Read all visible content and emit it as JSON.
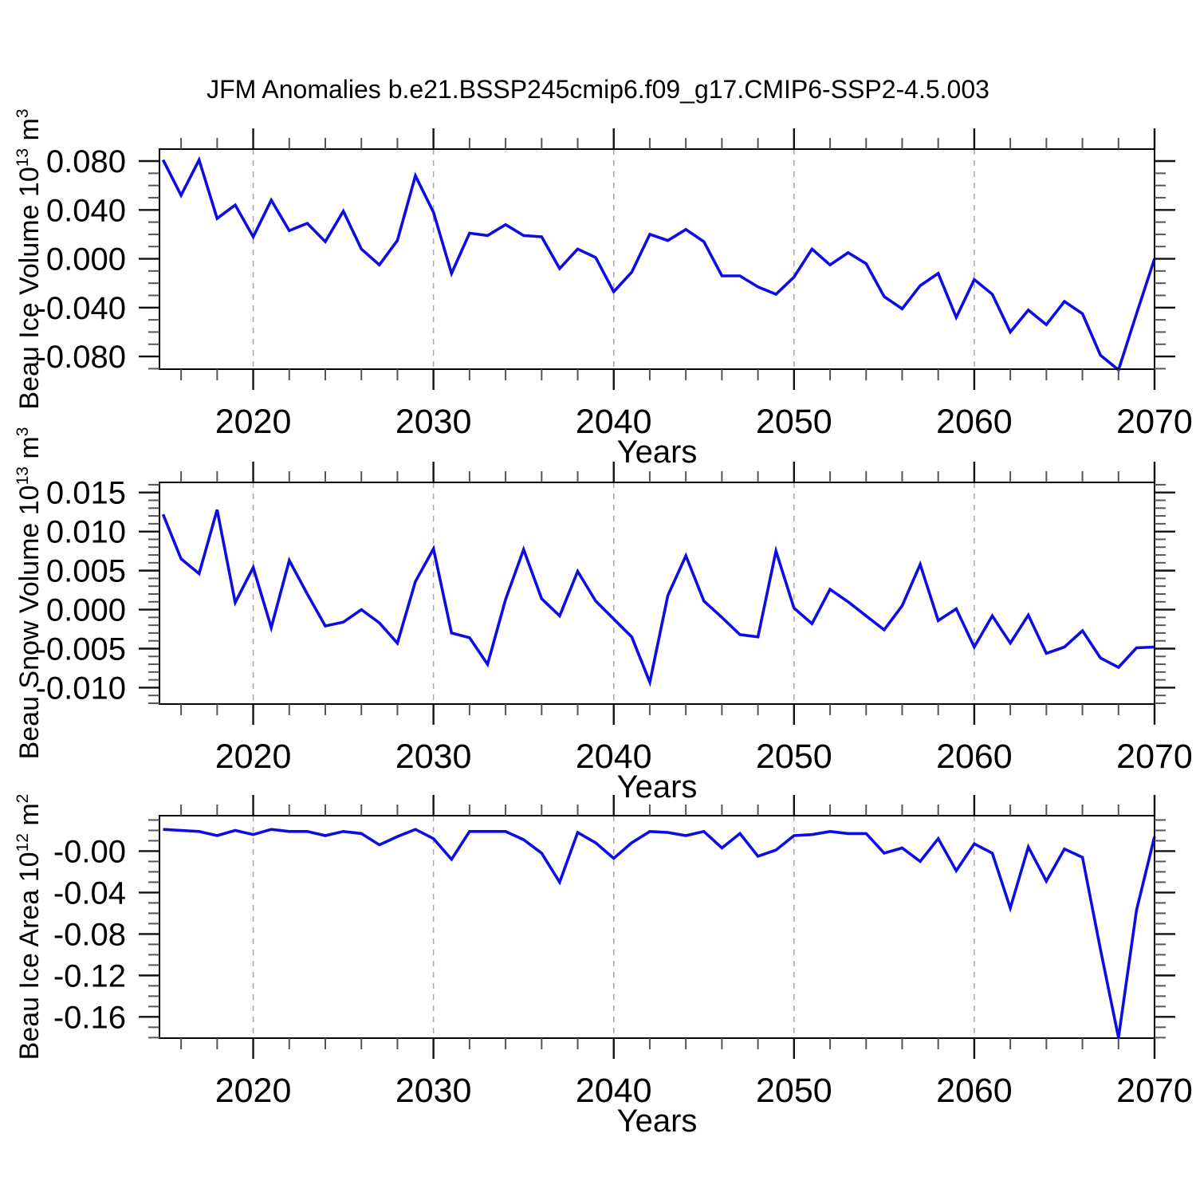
{
  "title": "JFM Anomalies b.e21.BSSP245cmip6.f09_g17.CMIP6-SSP2-4.5.003",
  "colors": {
    "line": "#0D0DE3",
    "grid": "#A9A9A9",
    "axis": "#000000",
    "tick_major": "#111111",
    "tick_minor": "#555555"
  },
  "chart_data": {
    "type": "line",
    "title": "JFM Anomalies b.e21.BSSP245cmip6.f09_g17.CMIP6-SSP2-4.5.003",
    "x": {
      "label": "Years",
      "domain": [
        2014.8,
        2070
      ],
      "major_ticks": [
        2020,
        2030,
        2040,
        2050,
        2060,
        2070
      ],
      "major_tick_labels": [
        "2020",
        "2030",
        "2040",
        "2050",
        "2060",
        "2070"
      ],
      "minor_step": 2,
      "grid_decades": [
        2020,
        2030,
        2040,
        2050,
        2060
      ],
      "years": [
        2015,
        2016,
        2017,
        2018,
        2019,
        2020,
        2021,
        2022,
        2023,
        2024,
        2025,
        2026,
        2027,
        2028,
        2029,
        2030,
        2031,
        2032,
        2033,
        2034,
        2035,
        2036,
        2037,
        2038,
        2039,
        2040,
        2041,
        2042,
        2043,
        2044,
        2045,
        2046,
        2047,
        2048,
        2049,
        2050,
        2051,
        2052,
        2053,
        2054,
        2055,
        2056,
        2057,
        2058,
        2059,
        2060,
        2061,
        2062,
        2063,
        2064,
        2065,
        2066,
        2067,
        2068,
        2069,
        2070
      ]
    },
    "panels": [
      {
        "name": "beau-ice-volume",
        "ylabel": "Beau Ice Volume 10^13 m^3",
        "ylabel_parts": {
          "base": "Beau Ice Volume 10",
          "exp": "13",
          "unit": " m",
          "unit_exp": "3"
        },
        "ylim": [
          -0.0904,
          0.0898
        ],
        "ytick_values": [
          0.08,
          0.04,
          0.0,
          -0.04,
          -0.08
        ],
        "ytick_labels": [
          "0.080",
          "0.040",
          "0.000",
          "-0.040",
          "-0.080"
        ],
        "yminor_step": 0.01,
        "values": [
          0.081,
          0.052,
          0.081,
          0.033,
          0.044,
          0.018,
          0.048,
          0.023,
          0.029,
          0.014,
          0.039,
          0.008,
          -0.005,
          0.015,
          0.068,
          0.038,
          -0.012,
          0.021,
          0.019,
          0.028,
          0.019,
          0.018,
          -0.008,
          0.008,
          0.001,
          -0.027,
          -0.011,
          0.02,
          0.015,
          0.024,
          0.014,
          -0.014,
          -0.014,
          -0.023,
          -0.029,
          -0.015,
          0.008,
          -0.005,
          0.005,
          -0.004,
          -0.031,
          -0.041,
          -0.022,
          -0.012,
          -0.048,
          -0.017,
          -0.029,
          -0.06,
          -0.042,
          -0.054,
          -0.035,
          -0.045,
          -0.079,
          -0.091,
          -0.045,
          0.0
        ]
      },
      {
        "name": "beau-snow-volume",
        "ylabel": "Beau Snow Volume 10^13 m^3",
        "ylabel_parts": {
          "base": "Beau Snow Volume 10",
          "exp": "13",
          "unit": " m",
          "unit_exp": "3"
        },
        "ylim": [
          -0.0121,
          0.0163
        ],
        "ytick_values": [
          0.015,
          0.01,
          0.005,
          0.0,
          -0.005,
          -0.01
        ],
        "ytick_labels": [
          "0.015",
          "0.010",
          "0.005",
          "0.000",
          "-0.005",
          "-0.010"
        ],
        "yminor_step": 0.001,
        "values": [
          0.0122,
          0.0065,
          0.0046,
          0.0128,
          0.0009,
          0.0054,
          -0.0023,
          0.0063,
          0.002,
          -0.0021,
          -0.0016,
          0.0,
          -0.0017,
          -0.0043,
          0.0036,
          0.0078,
          -0.003,
          -0.0036,
          -0.007,
          0.0013,
          0.0077,
          0.0014,
          -0.0008,
          0.0049,
          0.0011,
          -0.0012,
          -0.0035,
          -0.0093,
          0.0018,
          0.0069,
          0.0011,
          -0.001,
          -0.0032,
          -0.0035,
          0.0075,
          0.0002,
          -0.0018,
          0.0026,
          0.001,
          -0.0008,
          -0.0026,
          0.0005,
          0.0058,
          -0.0014,
          0.0001,
          -0.0048,
          -0.0008,
          -0.0043,
          -0.0007,
          -0.0056,
          -0.0048,
          -0.0027,
          -0.0062,
          -0.0074,
          -0.0049,
          -0.0048
        ]
      },
      {
        "name": "beau-ice-area",
        "ylabel": "Beau Ice Area 10^12 m^2",
        "ylabel_parts": {
          "base": "Beau Ice Area 10",
          "exp": "12",
          "unit": " m",
          "unit_exp": "2"
        },
        "ylim": [
          -0.1805,
          0.0342
        ],
        "ytick_values": [
          0.0,
          -0.04,
          -0.08,
          -0.12,
          -0.16
        ],
        "ytick_labels": [
          "-0.00",
          "-0.04",
          "-0.08",
          "-0.12",
          "-0.16"
        ],
        "yminor_step": 0.01,
        "values": [
          0.021,
          0.02,
          0.019,
          0.015,
          0.02,
          0.016,
          0.021,
          0.019,
          0.019,
          0.015,
          0.019,
          0.017,
          0.006,
          0.014,
          0.021,
          0.012,
          -0.008,
          0.019,
          0.019,
          0.019,
          0.011,
          -0.002,
          -0.03,
          0.018,
          0.008,
          -0.007,
          0.008,
          0.019,
          0.018,
          0.015,
          0.019,
          0.003,
          0.017,
          -0.005,
          0.001,
          0.015,
          0.016,
          0.019,
          0.017,
          0.017,
          -0.002,
          0.003,
          -0.01,
          0.012,
          -0.019,
          0.007,
          -0.002,
          -0.055,
          0.004,
          -0.029,
          0.002,
          -0.006,
          -0.095,
          -0.18,
          -0.057,
          0.014
        ]
      }
    ]
  }
}
